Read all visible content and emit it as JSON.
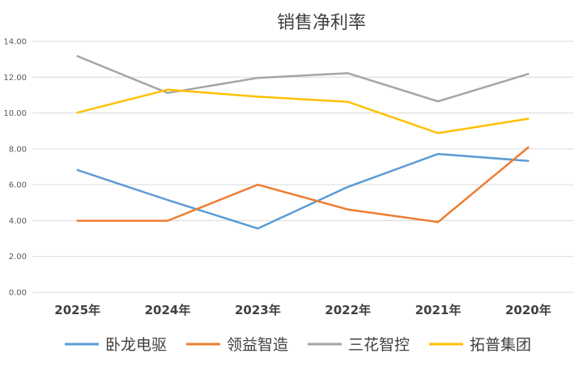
{
  "chart_data": {
    "type": "line",
    "title": "销售净利率",
    "categories": [
      "2025年",
      "2024年",
      "2023年",
      "2022年",
      "2021年",
      "2020年"
    ],
    "ylim": [
      0,
      14
    ],
    "yticks": [
      "0.00",
      "2.00",
      "4.00",
      "6.00",
      "8.00",
      "10.00",
      "12.00",
      "14.00"
    ],
    "grid": true,
    "legend_position": "bottom",
    "series": [
      {
        "name": "卧龙电驱",
        "color": "#5B9BD5",
        "values": [
          6.82,
          5.15,
          3.56,
          5.88,
          7.72,
          7.33
        ]
      },
      {
        "name": "领益智造",
        "color": "#ED7D31",
        "values": [
          3.99,
          3.99,
          6.0,
          4.62,
          3.92,
          8.08
        ]
      },
      {
        "name": "三花智控",
        "color": "#A5A5A5",
        "values": [
          13.17,
          11.12,
          11.96,
          12.22,
          10.65,
          12.18
        ]
      },
      {
        "name": "拓普集团",
        "color": "#FFC000",
        "values": [
          10.02,
          11.3,
          10.91,
          10.62,
          8.88,
          9.68
        ]
      }
    ]
  }
}
